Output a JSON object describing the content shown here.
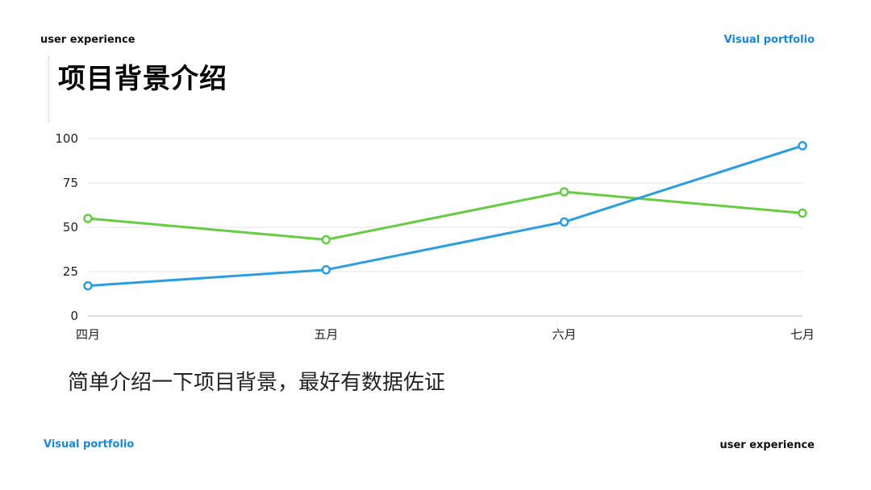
{
  "header": {
    "left_text": "user experience",
    "right_text": "Visual portfolio"
  },
  "page_title": "项目背景介绍",
  "description": "简单介绍一下项目背景，最好有数据佐证",
  "footer": {
    "left_text": "Visual portfolio",
    "right_text": "user experience"
  },
  "colors": {
    "accent_blue": "#1a87d8",
    "series_blue": "#2b9de0",
    "series_green": "#66cc44",
    "grid": "#e6e6e6",
    "axis": "#bbbbbb"
  },
  "chart_data": {
    "type": "line",
    "categories": [
      "四月",
      "五月",
      "六月",
      "七月"
    ],
    "y_ticks": [
      "100",
      "75",
      "50",
      "25",
      "0"
    ],
    "ylim": [
      0,
      100
    ],
    "grid": true,
    "legend": "none",
    "series": [
      {
        "color": "#66cc44",
        "values": [
          55,
          43,
          70,
          58
        ]
      },
      {
        "color": "#2b9de0",
        "values": [
          17,
          26,
          53,
          96
        ]
      }
    ]
  }
}
